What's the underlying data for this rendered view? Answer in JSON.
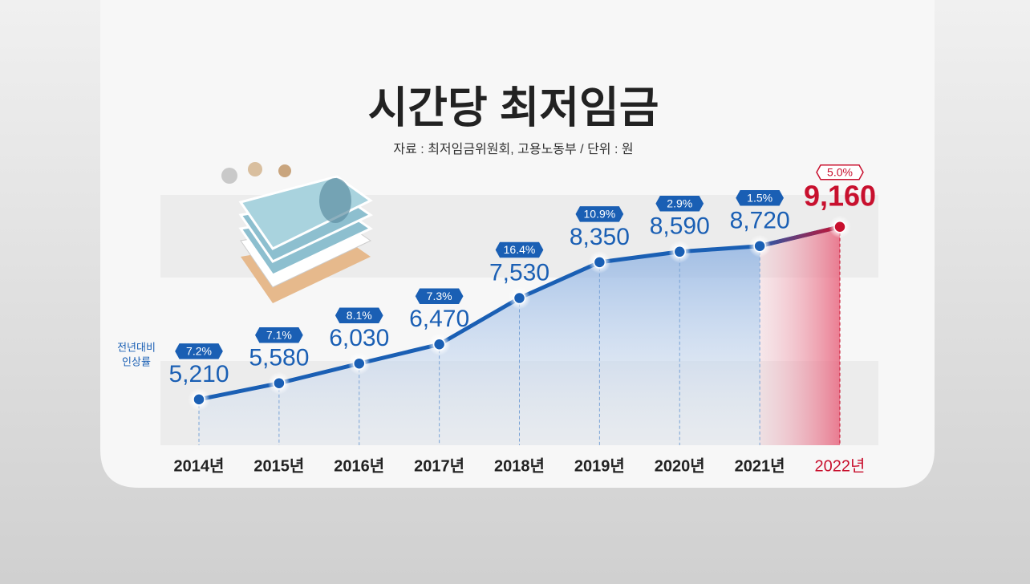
{
  "chart_data": {
    "type": "line",
    "title": "시간당 최저임금",
    "subtitle": "자료 : 최저임금위원회, 고용노동부 / 단위 : 원",
    "side_label": [
      "전년대비",
      "인상률"
    ],
    "categories": [
      "2014년",
      "2015년",
      "2016년",
      "2017년",
      "2018년",
      "2019년",
      "2020년",
      "2021년",
      "2022년"
    ],
    "series": [
      {
        "color": "#1a5fb4",
        "values": [
          5210,
          5580,
          6030,
          6470,
          7530,
          8350,
          8590,
          8720,
          9160
        ],
        "value_labels": [
          "5,210",
          "5,580",
          "6,030",
          "6,470",
          "7,530",
          "8,350",
          "8,590",
          "8,720",
          "9,160"
        ],
        "change_labels": [
          "7.2%",
          "7.1%",
          "8.1%",
          "7.3%",
          "16.4%",
          "10.9%",
          "2.9%",
          "1.5%",
          "5.0%"
        ]
      }
    ],
    "highlight_color": "#c8102e",
    "ylim": [
      3500,
      10000
    ]
  }
}
